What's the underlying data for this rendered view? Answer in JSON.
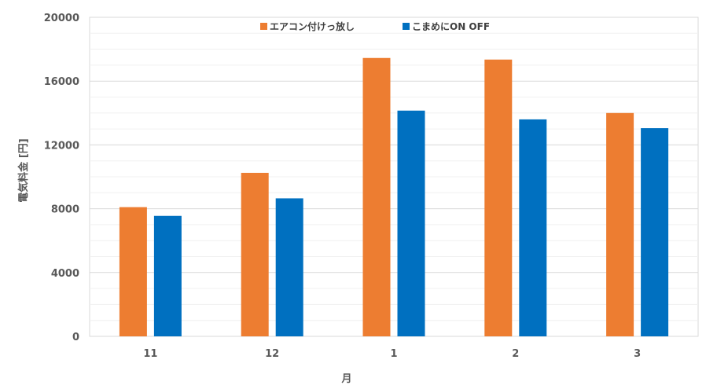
{
  "chart_data": {
    "type": "bar",
    "categories": [
      "11",
      "12",
      "1",
      "2",
      "3"
    ],
    "series": [
      {
        "name": "エアコン付けっ放し",
        "color": "#ED7D31",
        "values": [
          8100,
          10250,
          17450,
          17350,
          14000
        ]
      },
      {
        "name": "こまめにON OFF",
        "color": "#0070C0",
        "values": [
          7550,
          8650,
          14150,
          13600,
          13050
        ]
      }
    ],
    "xlabel": "月",
    "ylabel": "電気料金 [円]",
    "ylim": [
      0,
      20000
    ],
    "yticks": [
      "0",
      "4000",
      "8000",
      "12000",
      "16000",
      "20000"
    ],
    "yticks_values": [
      0,
      4000,
      8000,
      12000,
      16000,
      20000
    ],
    "minor_gridlines": true,
    "legend_position": "top-center"
  }
}
